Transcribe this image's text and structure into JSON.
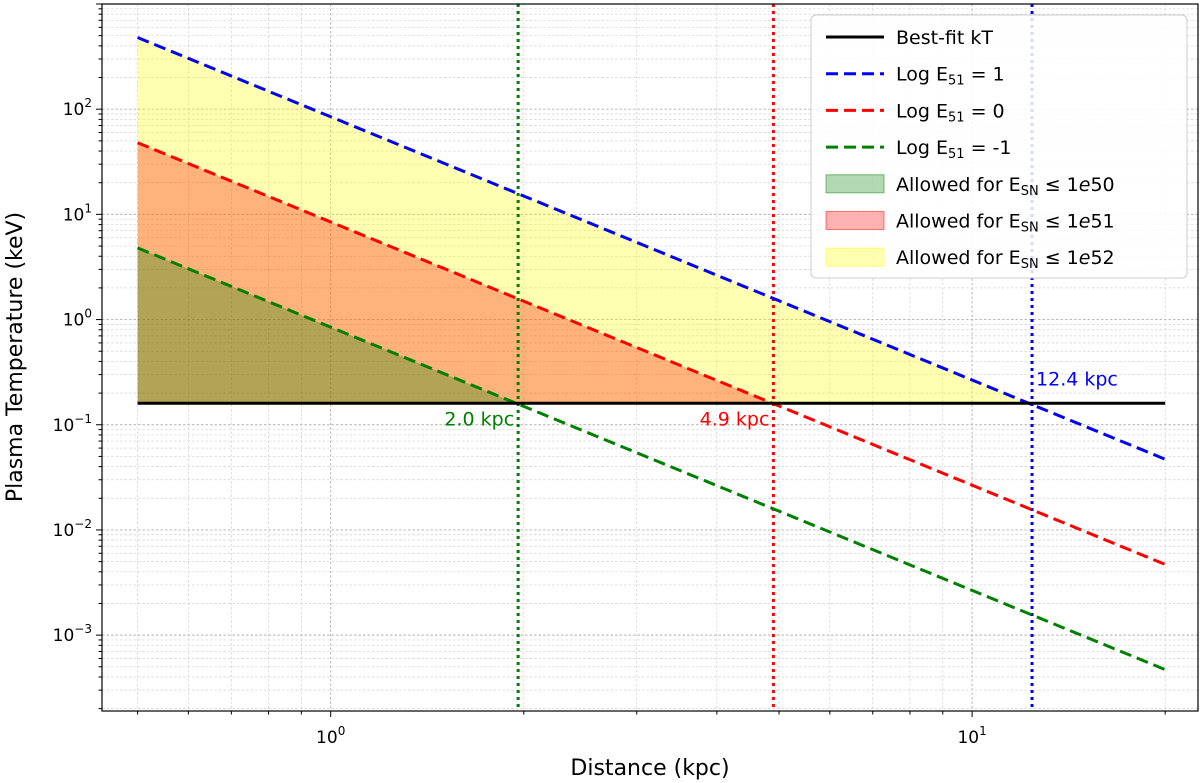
{
  "chart_data": {
    "type": "line",
    "xlabel": "Distance (kpc)",
    "ylabel": "Plasma Temperature (keV)",
    "xscale": "log",
    "yscale": "log",
    "xlim": [
      0.44,
      22.5
    ],
    "ylim": [
      0.00019,
      1000
    ],
    "xticks": [
      {
        "value": 1,
        "base": "10",
        "exp": "0"
      },
      {
        "value": 10,
        "base": "10",
        "exp": "1"
      }
    ],
    "yticks": [
      {
        "value": 0.001,
        "base": "10",
        "exp": "−3"
      },
      {
        "value": 0.01,
        "base": "10",
        "exp": "−2"
      },
      {
        "value": 0.1,
        "base": "10",
        "exp": "−1"
      },
      {
        "value": 1,
        "base": "10",
        "exp": "0"
      },
      {
        "value": 10,
        "base": "10",
        "exp": "1"
      },
      {
        "value": 100,
        "base": "10",
        "exp": "2"
      }
    ],
    "grid": true,
    "legend_position": "top-right",
    "best_fit": {
      "label": "Best-fit kT",
      "value": 0.16,
      "x_range": [
        0.5,
        20
      ],
      "color": "#000000"
    },
    "series": [
      {
        "name": "Log E51 = 1",
        "label_prefix": "Log E",
        "label_sub": "51",
        "label_suffix": " = 1",
        "color": "#0000ff",
        "x": [
          0.5,
          20
        ],
        "y": [
          480,
          0.047
        ]
      },
      {
        "name": "Log E51 = 0",
        "label_prefix": "Log E",
        "label_sub": "51",
        "label_suffix": " = 0",
        "color": "#ff0000",
        "x": [
          0.5,
          20
        ],
        "y": [
          48,
          0.0047
        ]
      },
      {
        "name": "Log E51 = -1",
        "label_prefix": "Log E",
        "label_sub": "51",
        "label_suffix": " = -1",
        "color": "#008000",
        "x": [
          0.5,
          20
        ],
        "y": [
          4.8,
          0.00047
        ]
      }
    ],
    "filled_regions": [
      {
        "label_prefix": "Allowed for E",
        "label_sub": "SN",
        "label_suffix": " ≤ 1",
        "label_italic": "e",
        "label_num": "50",
        "color": "#008000",
        "opacity": 0.3,
        "bound_series": 2
      },
      {
        "label_prefix": "Allowed for E",
        "label_sub": "SN",
        "label_suffix": " ≤ 1",
        "label_italic": "e",
        "label_num": "51",
        "color": "#ff0000",
        "opacity": 0.3,
        "bound_series": 1
      },
      {
        "label_prefix": "Allowed for E",
        "label_sub": "SN",
        "label_suffix": " ≤ 1",
        "label_italic": "e",
        "label_num": "52",
        "color": "#ffff00",
        "opacity": 0.3,
        "bound_series": 0
      }
    ],
    "vlines": [
      {
        "x": 1.96,
        "color": "#008000",
        "label": "2.0 kpc",
        "anchor": "end"
      },
      {
        "x": 4.9,
        "color": "#ff0000",
        "label": "4.9 kpc",
        "anchor": "end"
      },
      {
        "x": 12.4,
        "color": "#0000ff",
        "label": "12.4 kpc",
        "anchor": "start"
      }
    ]
  }
}
